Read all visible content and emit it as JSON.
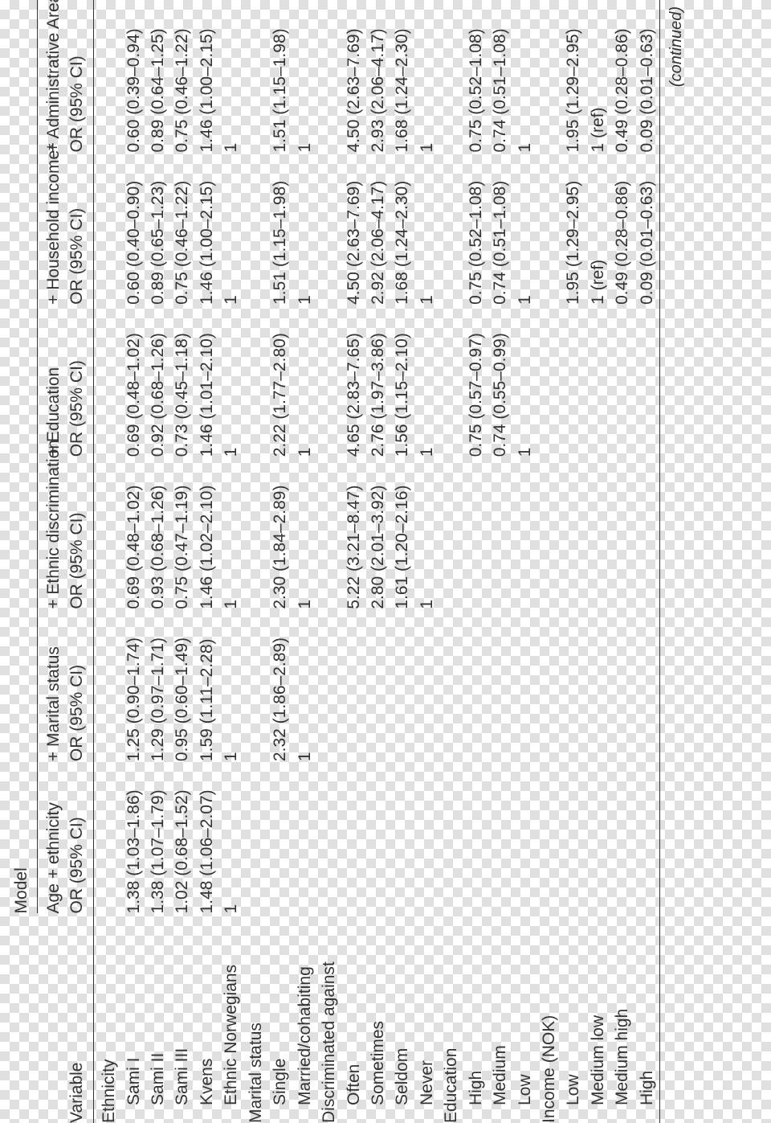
{
  "header": {
    "super": "Model",
    "variable": "Variable",
    "or_line": "OR (95% CI)",
    "cols": [
      "Age + ethnicity",
      "+ Marital status",
      "+ Ethnic discrimination",
      "+ Education",
      "+ Household income*",
      "+ Administrative Area"
    ]
  },
  "footer": "(continued)",
  "sections": [
    {
      "label": "Ethnicity",
      "rows": [
        {
          "label": "Sami I",
          "vals": [
            "1.38 (1.03–1.86)",
            "1.25 (0.90–1.74)",
            "0.69 (0.48–1.02)",
            "0.69 (0.48–1.02)",
            "0.60 (0.40–0.90)",
            "0.60 (0.39–0.94)"
          ]
        },
        {
          "label": "Sami II",
          "vals": [
            "1.38 (1.07–1.79)",
            "1.29 (0.97–1.71)",
            "0.93 (0.68–1.26)",
            "0.92 (0.68–1.26)",
            "0.89 (0.65–1.23)",
            "0.89 (0.64–1.25)"
          ]
        },
        {
          "label": "Sami III",
          "vals": [
            "1.02 (0.68–1.52)",
            "0.95 (0.60–1.49)",
            "0.75 (0.47–1.19)",
            "0.73 (0.45–1.18)",
            "0.75 (0.46–1.22)",
            "0.75 (0.46–1.22)"
          ]
        },
        {
          "label": "Kvens",
          "vals": [
            "1.48 (1.06–2.07)",
            "1.59 (1.11–2.28)",
            "1.46 (1.02–2.10)",
            "1.46 (1.01–2.10)",
            "1.46 (1.00–2.15)",
            "1.46 (1.00–2.15)"
          ]
        },
        {
          "label": "Ethnic Norwegians",
          "vals": [
            "1",
            "1",
            "1",
            "1",
            "1",
            "1"
          ]
        }
      ]
    },
    {
      "label": "Marital status",
      "rows": [
        {
          "label": "Single",
          "vals": [
            "",
            "2.32 (1.86–2.89)",
            "2.30 (1.84–2.89)",
            "2.22 (1.77–2.80)",
            "1.51 (1.15–1.98)",
            "1.51 (1.15–1.98)"
          ]
        },
        {
          "label": "Married/cohabiting",
          "vals": [
            "",
            "1",
            "1",
            "1",
            "1",
            "1"
          ]
        }
      ]
    },
    {
      "label": "Discriminated against",
      "rows": [
        {
          "label": "Often",
          "vals": [
            "",
            "",
            "5.22 (3.21–8.47)",
            "4.65 (2.83–7.65)",
            "4.50 (2.63–7.69)",
            "4.50 (2.63–7.69)"
          ]
        },
        {
          "label": "Sometimes",
          "vals": [
            "",
            "",
            "2.80 (2.01–3.92)",
            "2.76 (1.97–3.86)",
            "2.92 (2.06–4.17)",
            "2.93 (2.06–4.17)"
          ]
        },
        {
          "label": "Seldom",
          "vals": [
            "",
            "",
            "1.61 (1.20–2.16)",
            "1.56 (1.15–2.10)",
            "1.68 (1.24–2.30)",
            "1.68 (1.24–2.30)"
          ]
        },
        {
          "label": "Never",
          "vals": [
            "",
            "",
            "1",
            "1",
            "1",
            "1"
          ]
        }
      ]
    },
    {
      "label": "Education",
      "rows": [
        {
          "label": "High",
          "vals": [
            "",
            "",
            "",
            "0.75 (0.57–0.97)",
            "0.75 (0.52–1.08)",
            "0.75 (0.52–1.08)"
          ]
        },
        {
          "label": "Medium",
          "vals": [
            "",
            "",
            "",
            "0.74 (0.55–0.99)",
            "0.74 (0.51–1.08)",
            "0.74 (0.51–1.08)"
          ]
        },
        {
          "label": "Low",
          "vals": [
            "",
            "",
            "",
            "1",
            "1",
            "1"
          ]
        }
      ]
    },
    {
      "label": "Income (NOK)",
      "rows": [
        {
          "label": "Low",
          "vals": [
            "",
            "",
            "",
            "",
            "1.95 (1.29–2.95)",
            "1.95 (1.29–2.95)"
          ]
        },
        {
          "label": "Medium low",
          "vals": [
            "",
            "",
            "",
            "",
            "1 (ref)",
            "1 (ref)"
          ]
        },
        {
          "label": "Medium high",
          "vals": [
            "",
            "",
            "",
            "",
            "0.49 (0.28–0.86)",
            "0.49 (0.28–0.86)"
          ]
        },
        {
          "label": "High",
          "vals": [
            "",
            "",
            "",
            "",
            "0.09 (0.01–0.63)",
            "0.09 (0.01–0.63)"
          ]
        }
      ]
    }
  ]
}
